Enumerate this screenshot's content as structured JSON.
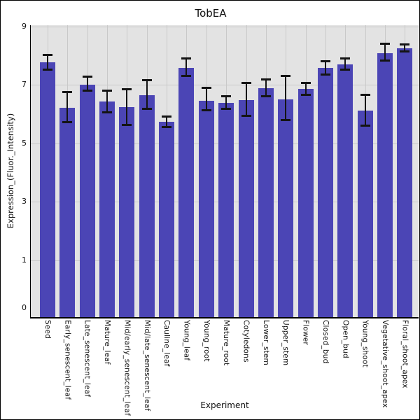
{
  "chart_data": {
    "type": "bar",
    "title": "TobEA",
    "xlabel": "Experiment",
    "ylabel": "Expression_(Fluor._Intensity)",
    "categories": [
      "Seed",
      "Early_senescent_leaf",
      "Late_senescent_leaf",
      "Mature_leaf",
      "Mid/early_senescent_leaf",
      "Mid/late_senescent_leaf",
      "Cauline_leaf",
      "Young_leaf",
      "Young_root",
      "Mature_root",
      "Cotyledons",
      "Lower_stem",
      "Upper_stem",
      "Flower",
      "Closed_bud",
      "Open_bud",
      "Young_shoot",
      "Vegetative_shoot_apex",
      "Floral_shoot_apex"
    ],
    "values": [
      7.78,
      6.22,
      7.02,
      6.43,
      6.25,
      6.64,
      5.74,
      7.58,
      6.46,
      6.38,
      6.48,
      6.9,
      6.52,
      6.86,
      7.58,
      7.7,
      6.12,
      8.1,
      8.26
    ],
    "error_low": [
      7.52,
      5.73,
      6.81,
      6.07,
      5.63,
      6.18,
      5.57,
      7.31,
      6.13,
      6.19,
      5.95,
      6.62,
      5.79,
      6.67,
      7.36,
      7.52,
      5.61,
      7.84,
      8.14
    ],
    "error_high": [
      8.04,
      6.77,
      7.28,
      6.81,
      6.86,
      7.16,
      5.91,
      7.91,
      6.9,
      6.62,
      7.08,
      7.2,
      7.32,
      7.07,
      7.81,
      7.9,
      6.67,
      8.42,
      8.38
    ],
    "ytick_labels": [
      "9",
      "7",
      "5",
      "3",
      "1"
    ],
    "ytick_values": [
      9,
      7,
      5,
      3,
      1
    ],
    "baseline_tick_label": "0",
    "ylim": [
      -0.95,
      9.05
    ],
    "grid": true,
    "legend_position": "none",
    "bar_color": "#4b45b5",
    "error_color": "#141414",
    "panel_bg": "#e3e3e3",
    "gridline_color": "#c9c9c9",
    "axis_color": "#000000"
  }
}
